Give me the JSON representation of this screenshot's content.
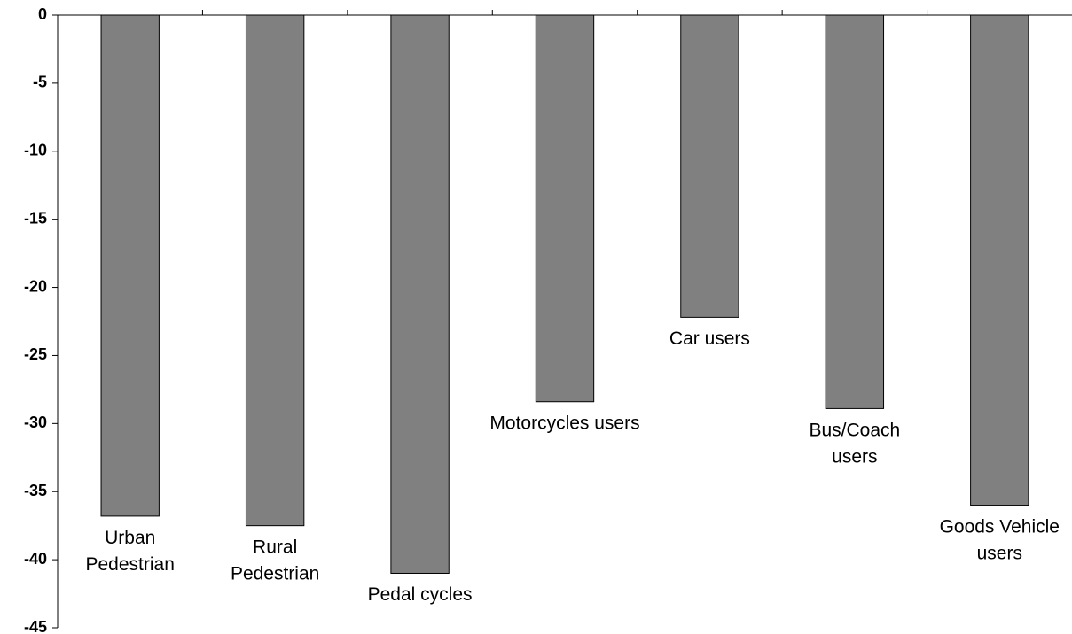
{
  "chart_data": {
    "type": "bar",
    "categories": [
      "Urban\nPedestrian",
      "Rural\nPedestrian",
      "Pedal cycles",
      "Motorcycles users",
      "Car users",
      "Bus/Coach\nusers",
      "Goods Vehicle\nusers"
    ],
    "values": [
      -36.8,
      -37.5,
      -41.0,
      -28.4,
      -22.2,
      -28.9,
      -36.0
    ],
    "color": "#808080",
    "ylim": [
      -45,
      0
    ],
    "yticks": [
      0,
      -5,
      -10,
      -15,
      -20,
      -25,
      -30,
      -35,
      -40,
      -45
    ]
  }
}
